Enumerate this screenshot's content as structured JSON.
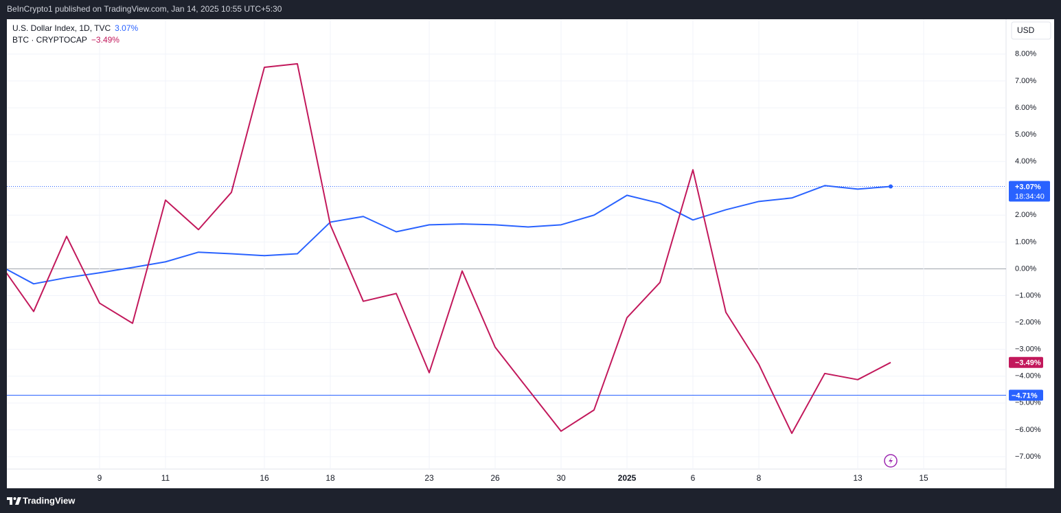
{
  "header": "BeInCrypto1 published on TradingView.com, Jan 14, 2025 10:55 UTC+5:30",
  "footer": "TradingView",
  "currency": "USD",
  "chart_data": {
    "type": "line",
    "categories": [
      null,
      null,
      null,
      "9",
      null,
      "11",
      null,
      null,
      "16",
      null,
      "18",
      null,
      null,
      "23",
      null,
      "26",
      null,
      "30",
      null,
      "2025",
      null,
      "6",
      null,
      "8",
      null,
      null,
      "13",
      null,
      "15"
    ],
    "bold_ticks": [
      19
    ],
    "series": [
      {
        "name": "U.S. Dollar Index, 1D, TVC",
        "color": "#2962ff",
        "legend_value": "3.07%",
        "last_label": "+3.07%",
        "countdown": "18:34:40",
        "values": [
          0.1,
          -0.56,
          -0.33,
          -0.15,
          0.05,
          0.26,
          0.62,
          0.56,
          0.49,
          0.56,
          1.74,
          1.95,
          1.38,
          1.64,
          1.67,
          1.64,
          1.56,
          1.64,
          2.0,
          2.74,
          2.44,
          1.82,
          2.2,
          2.51,
          2.64,
          3.1,
          2.97,
          3.07,
          null
        ]
      },
      {
        "name": "BTC · CRYPTOCAP",
        "color": "#c2185b",
        "legend_value": "−3.49%",
        "last_label": "−3.49%",
        "values": [
          0.15,
          -1.59,
          1.21,
          -1.28,
          -2.03,
          2.56,
          1.46,
          2.85,
          7.51,
          7.64,
          1.64,
          -1.21,
          -0.92,
          -3.87,
          -0.08,
          -2.92,
          -4.49,
          -6.05,
          -5.26,
          -1.82,
          -0.51,
          3.69,
          -1.62,
          -3.56,
          -6.13,
          -3.9,
          -4.13,
          -3.49,
          null
        ]
      }
    ],
    "price_line": {
      "value": -4.71,
      "label": "−4.71%",
      "color": "#2962ff"
    },
    "ylim": [
      -7.4,
      9.3
    ],
    "yticks": [
      {
        "value": 8,
        "label": "8.00%"
      },
      {
        "value": 7,
        "label": "7.00%"
      },
      {
        "value": 6,
        "label": "6.00%"
      },
      {
        "value": 5,
        "label": "5.00%"
      },
      {
        "value": 4,
        "label": "4.00%"
      },
      {
        "value": 3,
        "label": "3.00%"
      },
      {
        "value": 2,
        "label": "2.00%"
      },
      {
        "value": 1,
        "label": "1.00%"
      },
      {
        "value": 0,
        "label": "0.00%"
      },
      {
        "value": -1,
        "label": "−1.00%"
      },
      {
        "value": -2,
        "label": "−2.00%"
      },
      {
        "value": -3,
        "label": "−3.00%"
      },
      {
        "value": -4,
        "label": "−4.00%"
      },
      {
        "value": -5,
        "label": "−5.00%"
      },
      {
        "value": -6,
        "label": "−6.00%"
      },
      {
        "value": -7,
        "label": "−7.00%"
      }
    ],
    "grid": true
  }
}
